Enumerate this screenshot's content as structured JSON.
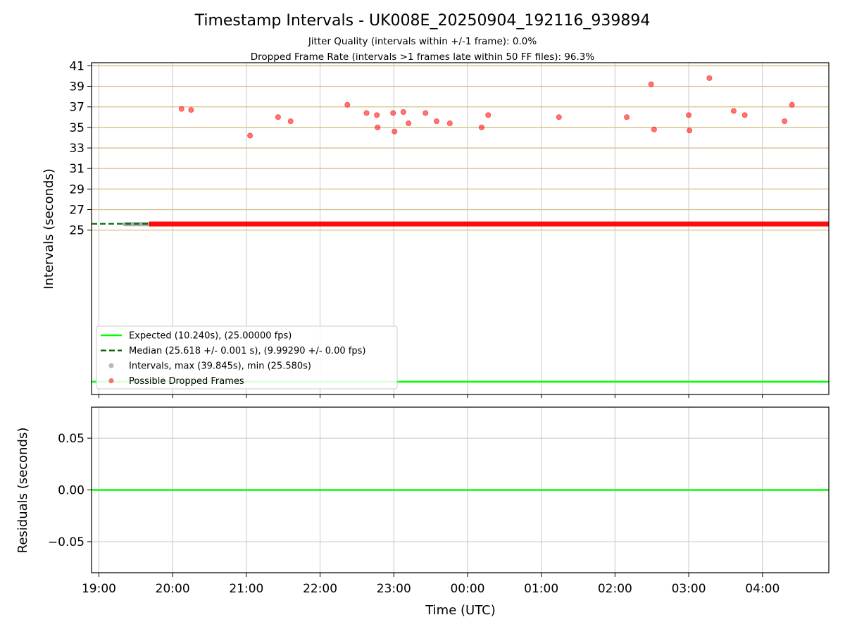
{
  "chart_data": [
    {
      "type": "scatter",
      "title": "Timestamp Intervals - UK008E_20250904_192116_939894",
      "subtitle1": "Jitter Quality (intervals within +/-1 frame): 0.0%",
      "subtitle2": "Dropped Frame Rate (intervals >1 frames late within 50 FF files): 96.3%",
      "xlabel": "",
      "ylabel": "Intervals (seconds)",
      "xlim": [
        -0.1,
        9.9
      ],
      "ylim": [
        9.0,
        41.3
      ],
      "yticks": [
        25,
        27,
        29,
        31,
        33,
        35,
        37,
        39,
        41
      ],
      "ytick_labels": [
        "25",
        "27",
        "29",
        "31",
        "33",
        "35",
        "37",
        "39",
        "41"
      ],
      "grid": true,
      "legend_position": "lower-left",
      "series": [
        {
          "name": "Expected (10.240s), (25.00000 fps)",
          "style": "solid-line",
          "color": "#00ff00",
          "y": 10.24
        },
        {
          "name": "Median (25.618 +/- 0.001 s), (9.99290 +/- 0.00 fps)",
          "style": "dashed-line",
          "color": "#006400",
          "y": 25.618,
          "x_end": 0.68
        },
        {
          "name": "Intervals, max (39.845s), min (25.580s)",
          "style": "gray-points",
          "color": "#808080",
          "y": 25.58,
          "x_range": [
            0.35,
            0.68
          ]
        },
        {
          "name": "Possible Dropped Frames",
          "style": "red-points",
          "color": "#ff0000",
          "baseline": {
            "y": 25.6,
            "x_range": [
              0.68,
              9.9
            ]
          },
          "points": [
            [
              1.12,
              36.8
            ],
            [
              1.25,
              36.7
            ],
            [
              2.05,
              34.2
            ],
            [
              2.43,
              36.0
            ],
            [
              2.6,
              35.6
            ],
            [
              3.37,
              37.2
            ],
            [
              3.63,
              36.4
            ],
            [
              3.77,
              36.2
            ],
            [
              3.78,
              35.0
            ],
            [
              3.99,
              36.4
            ],
            [
              4.01,
              34.6
            ],
            [
              4.13,
              36.5
            ],
            [
              4.2,
              35.4
            ],
            [
              4.43,
              36.4
            ],
            [
              4.58,
              35.6
            ],
            [
              4.76,
              35.4
            ],
            [
              5.19,
              35.0
            ],
            [
              5.28,
              36.2
            ],
            [
              6.24,
              36.0
            ],
            [
              7.16,
              36.0
            ],
            [
              7.49,
              39.2
            ],
            [
              7.53,
              34.8
            ],
            [
              8.0,
              36.2
            ],
            [
              8.01,
              34.7
            ],
            [
              8.28,
              39.8
            ],
            [
              8.61,
              36.6
            ],
            [
              8.76,
              36.2
            ],
            [
              9.3,
              35.6
            ],
            [
              9.4,
              37.2
            ]
          ]
        }
      ]
    },
    {
      "type": "line",
      "xlabel": "Time (UTC)",
      "ylabel": "Residuals (seconds)",
      "xlim": [
        -0.1,
        9.9
      ],
      "ylim": [
        -0.08,
        0.08
      ],
      "xticks": [
        0,
        1,
        2,
        3,
        4,
        5,
        6,
        7,
        8,
        9
      ],
      "xtick_labels": [
        "19:00",
        "20:00",
        "21:00",
        "22:00",
        "23:00",
        "00:00",
        "01:00",
        "02:00",
        "03:00",
        "04:00"
      ],
      "yticks": [
        0.05,
        0.0,
        -0.05
      ],
      "ytick_labels": [
        "0.05",
        "0.00",
        "−0.05"
      ],
      "grid": true,
      "series": [
        {
          "style": "solid-line",
          "color": "#00ff00",
          "values": [
            [
              -0.1,
              0.0
            ],
            [
              9.9,
              0.0
            ]
          ]
        }
      ]
    }
  ]
}
